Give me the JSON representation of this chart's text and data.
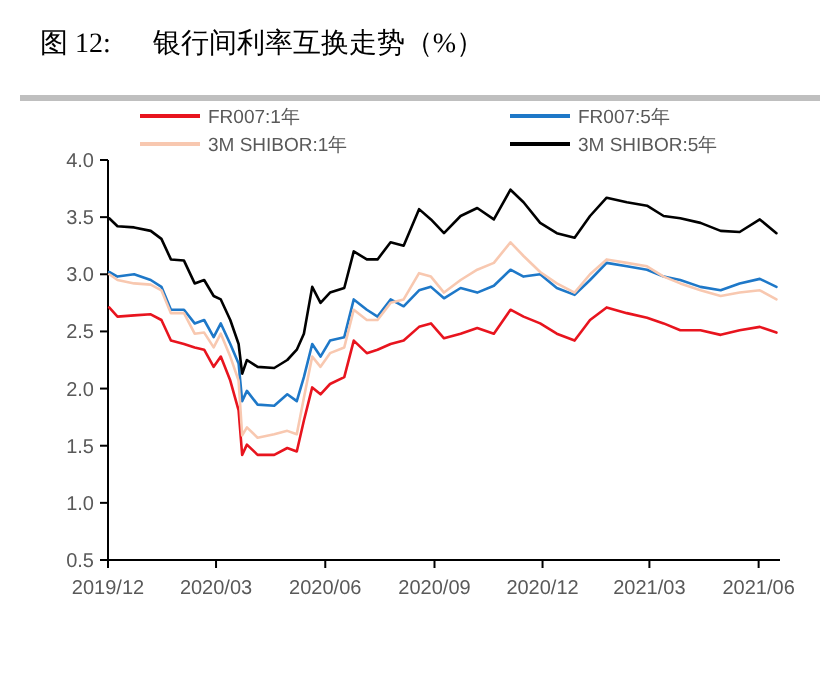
{
  "chart_data": {
    "type": "line",
    "title": "图 12:      银行间利率互换走势（%）",
    "x": [
      "2019-12-02",
      "2019-12-09",
      "2019-12-23",
      "2020-01-06",
      "2020-01-15",
      "2020-01-23",
      "2020-02-03",
      "2020-02-12",
      "2020-02-20",
      "2020-02-28",
      "2020-03-05",
      "2020-03-13",
      "2020-03-20",
      "2020-03-23",
      "2020-03-27",
      "2020-04-05",
      "2020-04-19",
      "2020-04-30",
      "2020-05-08",
      "2020-05-14",
      "2020-05-21",
      "2020-05-28",
      "2020-06-05",
      "2020-06-17",
      "2020-06-25",
      "2020-07-06",
      "2020-07-15",
      "2020-07-26",
      "2020-08-06",
      "2020-08-19",
      "2020-08-29",
      "2020-09-09",
      "2020-09-23",
      "2020-10-07",
      "2020-10-21",
      "2020-11-04",
      "2020-11-15",
      "2020-11-29",
      "2020-12-13",
      "2020-12-28",
      "2021-01-10",
      "2021-01-24",
      "2021-02-10",
      "2021-02-27",
      "2021-03-13",
      "2021-03-27",
      "2021-04-13",
      "2021-04-30",
      "2021-05-16",
      "2021-06-02",
      "2021-06-16"
    ],
    "series": [
      {
        "name": "FR007:1年",
        "color": "#e8141e",
        "values": [
          2.71,
          2.63,
          2.64,
          2.65,
          2.6,
          2.42,
          2.39,
          2.36,
          2.34,
          2.19,
          2.28,
          2.07,
          1.81,
          1.42,
          1.51,
          1.42,
          1.42,
          1.48,
          1.45,
          1.72,
          2.01,
          1.95,
          2.04,
          2.1,
          2.42,
          2.31,
          2.34,
          2.39,
          2.42,
          2.54,
          2.57,
          2.44,
          2.48,
          2.53,
          2.48,
          2.69,
          2.63,
          2.57,
          2.48,
          2.42,
          2.6,
          2.71,
          2.66,
          2.62,
          2.57,
          2.51,
          2.51,
          2.47,
          2.51,
          2.54,
          2.49
        ]
      },
      {
        "name": "FR007:5年",
        "color": "#1e78c8",
        "values": [
          3.02,
          2.98,
          3.0,
          2.95,
          2.89,
          2.69,
          2.69,
          2.57,
          2.6,
          2.45,
          2.57,
          2.39,
          2.22,
          1.89,
          1.98,
          1.86,
          1.85,
          1.95,
          1.89,
          2.1,
          2.39,
          2.28,
          2.42,
          2.45,
          2.78,
          2.69,
          2.63,
          2.78,
          2.72,
          2.86,
          2.89,
          2.79,
          2.88,
          2.84,
          2.9,
          3.04,
          2.98,
          3.0,
          2.88,
          2.82,
          2.95,
          3.1,
          3.07,
          3.04,
          2.98,
          2.95,
          2.89,
          2.86,
          2.92,
          2.96,
          2.89
        ]
      },
      {
        "name": "3M SHIBOR:1年",
        "color": "#f8c8b0",
        "values": [
          3.0,
          2.95,
          2.92,
          2.91,
          2.86,
          2.66,
          2.66,
          2.48,
          2.49,
          2.36,
          2.48,
          2.28,
          2.07,
          1.59,
          1.66,
          1.57,
          1.6,
          1.63,
          1.6,
          1.92,
          2.28,
          2.19,
          2.31,
          2.36,
          2.69,
          2.6,
          2.6,
          2.75,
          2.78,
          3.01,
          2.98,
          2.84,
          2.95,
          3.04,
          3.1,
          3.28,
          3.16,
          3.02,
          2.92,
          2.84,
          3.0,
          3.13,
          3.1,
          3.07,
          2.98,
          2.92,
          2.86,
          2.81,
          2.84,
          2.86,
          2.78
        ]
      },
      {
        "name": "3M SHIBOR:5年",
        "color": "#000000",
        "values": [
          3.49,
          3.42,
          3.41,
          3.38,
          3.31,
          3.13,
          3.12,
          2.92,
          2.95,
          2.81,
          2.78,
          2.6,
          2.39,
          2.13,
          2.25,
          2.19,
          2.18,
          2.25,
          2.34,
          2.48,
          2.89,
          2.75,
          2.84,
          2.88,
          3.2,
          3.13,
          3.13,
          3.28,
          3.25,
          3.57,
          3.48,
          3.36,
          3.51,
          3.58,
          3.48,
          3.74,
          3.63,
          3.45,
          3.36,
          3.32,
          3.51,
          3.67,
          3.63,
          3.6,
          3.51,
          3.49,
          3.45,
          3.38,
          3.37,
          3.48,
          3.36
        ]
      }
    ],
    "xlim": [
      "2019-12-01",
      "2021-06-19"
    ],
    "xticks": [
      {
        "value": "2019-12-01",
        "label": "2019/12"
      },
      {
        "value": "2020-03-01",
        "label": "2020/03"
      },
      {
        "value": "2020-06-01",
        "label": "2020/06"
      },
      {
        "value": "2020-09-01",
        "label": "2020/09"
      },
      {
        "value": "2020-12-01",
        "label": "2020/12"
      },
      {
        "value": "2021-03-01",
        "label": "2021/03"
      },
      {
        "value": "2021-06-01",
        "label": "2021/06"
      }
    ],
    "ylim": [
      0.5,
      4.0
    ],
    "yticks": [
      {
        "value": 0.5,
        "label": "0.5"
      },
      {
        "value": 1,
        "label": "1.0"
      },
      {
        "value": 1.5,
        "label": "1.5"
      },
      {
        "value": 2,
        "label": "2.0"
      },
      {
        "value": 2.5,
        "label": "2.5"
      },
      {
        "value": 3,
        "label": "3.0"
      },
      {
        "value": 3.5,
        "label": "3.5"
      },
      {
        "value": 4,
        "label": "4.0"
      }
    ],
    "legend": "top",
    "grid": false,
    "marker": "none",
    "line_style": "solid"
  }
}
